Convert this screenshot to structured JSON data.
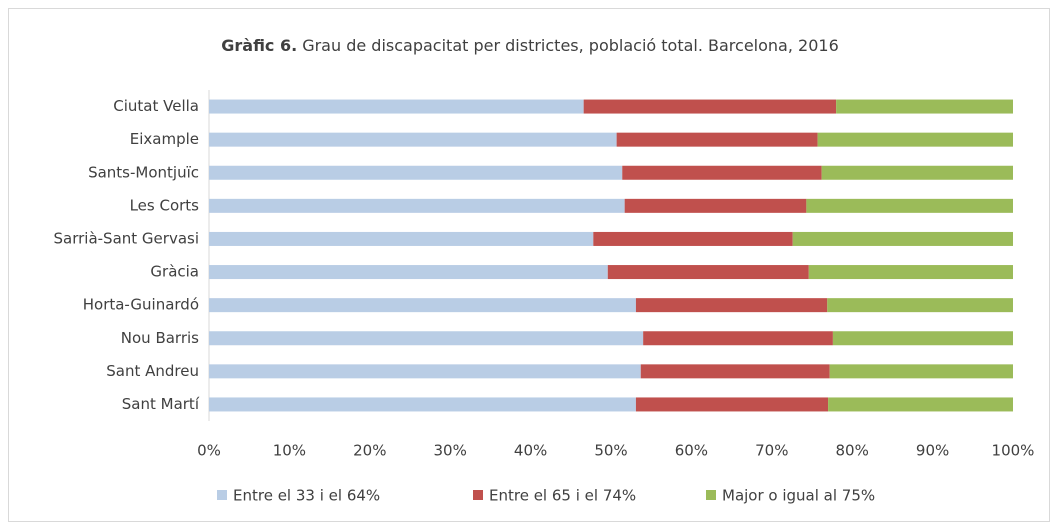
{
  "chart_data": {
    "type": "stacked_bar_horizontal",
    "title_label": "Gràfic 6.",
    "title": "Grau de discapacitat per districtes, població total. Barcelona, 2016",
    "categories": [
      "Ciutat Vella",
      "Eixample",
      "Sants-Montjuïc",
      "Les Corts",
      "Sarrià-Sant Gervasi",
      "Gràcia",
      "Horta-Guinardó",
      "Nou Barris",
      "Sant Andreu",
      "Sant Martí"
    ],
    "series": [
      {
        "name": "Entre el 33 i el 64%",
        "color": "#b9cde5",
        "values": [
          46.6,
          50.7,
          51.4,
          51.7,
          47.8,
          49.6,
          53.1,
          54.0,
          53.7,
          53.1
        ]
      },
      {
        "name": "Entre el 65 i el 74%",
        "color": "#c0504d",
        "values": [
          31.4,
          25.0,
          24.8,
          22.6,
          24.8,
          25.0,
          23.8,
          23.6,
          23.5,
          23.9
        ]
      },
      {
        "name": "Major o igual al 75%",
        "color": "#9bbb59",
        "values": [
          22.0,
          24.3,
          23.8,
          25.7,
          27.4,
          25.4,
          23.1,
          22.4,
          22.8,
          23.0
        ]
      }
    ],
    "xlim": [
      0,
      100
    ],
    "xticks": [
      {
        "value": 0,
        "label": "0%"
      },
      {
        "value": 10,
        "label": "10%"
      },
      {
        "value": 20,
        "label": "20%"
      },
      {
        "value": 30,
        "label": "30%"
      },
      {
        "value": 40,
        "label": "40%"
      },
      {
        "value": 50,
        "label": "50%"
      },
      {
        "value": 60,
        "label": "60%"
      },
      {
        "value": 70,
        "label": "70%"
      },
      {
        "value": 80,
        "label": "80%"
      },
      {
        "value": 90,
        "label": "90%"
      },
      {
        "value": 100,
        "label": "100%"
      }
    ],
    "grid": false,
    "legend": "bottom"
  }
}
